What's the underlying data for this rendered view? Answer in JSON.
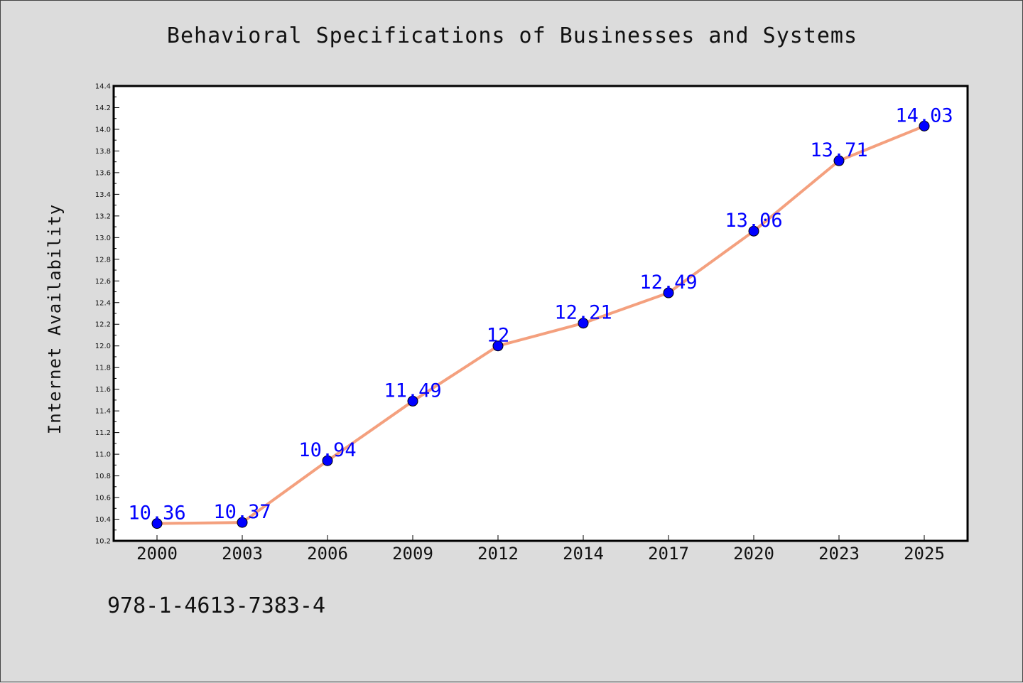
{
  "isbn": "978-1-4613-7383-4",
  "colors": {
    "background": "#dcdcdc",
    "plot_area": "#ffffff",
    "line": "#f4a07e",
    "marker": "#0000ff",
    "data_label": "#0000ff"
  },
  "chart_data": {
    "type": "line",
    "title": "Behavioral Specifications of Businesses and Systems",
    "xlabel": "",
    "ylabel": "Internet Availability",
    "categories": [
      "2000",
      "2003",
      "2006",
      "2009",
      "2012",
      "2014",
      "2017",
      "2020",
      "2023",
      "2025"
    ],
    "series": [
      {
        "values": [
          10.36,
          10.37,
          10.94,
          11.49,
          12,
          12.21,
          12.49,
          13.06,
          13.71,
          14.03
        ],
        "labels": [
          "10.36",
          "10.37",
          "10.94",
          "11.49",
          "12",
          "12.21",
          "12.49",
          "13.06",
          "13.71",
          "14.03"
        ]
      }
    ],
    "ylim": [
      10.2,
      14.4
    ],
    "yticks": [
      "10.2",
      "10.4",
      "10.6",
      "10.8",
      "11.0",
      "11.2",
      "11.4",
      "11.6",
      "11.8",
      "12.0",
      "12.2",
      "12.4",
      "12.6",
      "12.8",
      "13.0",
      "13.2",
      "13.4",
      "13.6",
      "13.8",
      "14.0",
      "14.2",
      "14.4"
    ],
    "grid": false,
    "legend": "none",
    "markers": "circle"
  }
}
